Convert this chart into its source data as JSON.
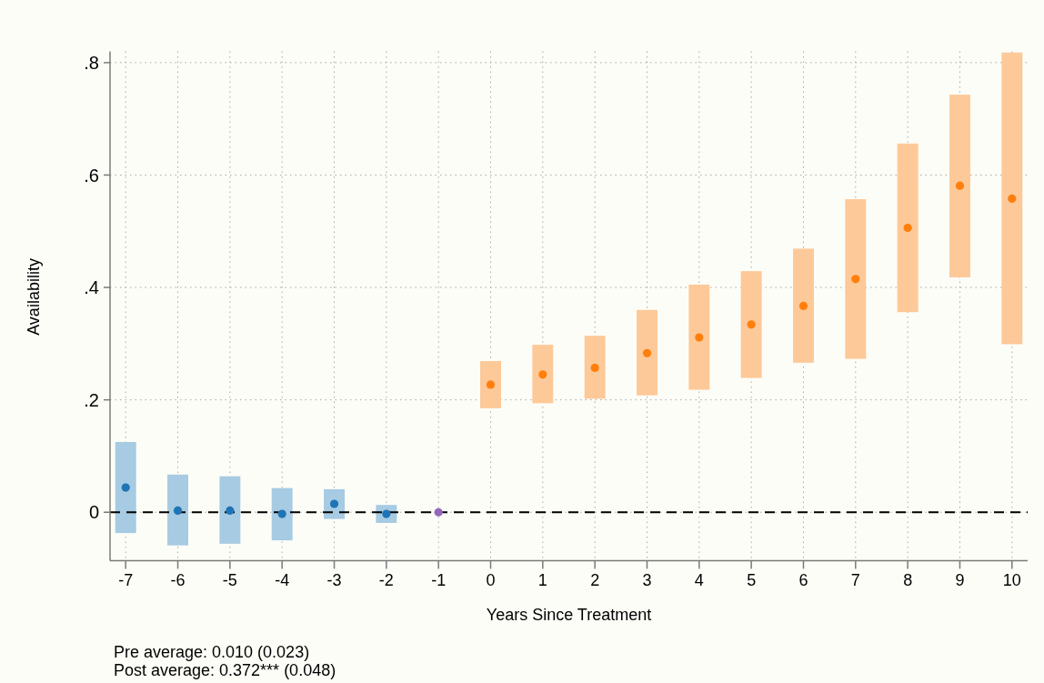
{
  "chart_data": {
    "type": "bar",
    "xlabel": "Years Since Treatment",
    "ylabel": "Availability",
    "categories": [
      "-7",
      "-6",
      "-5",
      "-4",
      "-3",
      "-2",
      "-1",
      "0",
      "1",
      "2",
      "3",
      "4",
      "5",
      "6",
      "7",
      "8",
      "9",
      "10"
    ],
    "series": [
      {
        "colors": [
          "#a6cbe3",
          "#a6cbe3",
          "#a6cbe3",
          "#a6cbe3",
          "#a6cbe3",
          "#a6cbe3",
          null,
          "#fdc998",
          "#fdc998",
          "#fdc998",
          "#fdc998",
          "#fdc998",
          "#fdc998",
          "#fdc998",
          "#fdc998",
          "#fdc998",
          "#fdc998",
          "#fdc998"
        ],
        "base": [
          -0.037,
          -0.059,
          -0.056,
          -0.05,
          -0.012,
          -0.019,
          null,
          0.185,
          0.194,
          0.202,
          0.208,
          0.218,
          0.239,
          0.266,
          0.273,
          0.356,
          0.418,
          0.299
        ],
        "values": [
          0.162,
          0.126,
          0.12,
          0.093,
          0.053,
          0.032,
          null,
          0.084,
          0.104,
          0.112,
          0.152,
          0.187,
          0.19,
          0.203,
          0.284,
          0.3,
          0.325,
          0.519
        ]
      },
      {
        "type": "scatter",
        "x": [
          "-7",
          "-6",
          "-5",
          "-4",
          "-3",
          "-2",
          "-1",
          "0",
          "1",
          "2",
          "3",
          "4",
          "5",
          "6",
          "7",
          "8",
          "9",
          "10"
        ],
        "colors": [
          "#1f74b5",
          "#1f74b5",
          "#1f74b5",
          "#1f74b5",
          "#1f74b5",
          "#1f74b5",
          "#9467bd",
          "#ff7f0e",
          "#ff7f0e",
          "#ff7f0e",
          "#ff7f0e",
          "#ff7f0e",
          "#ff7f0e",
          "#ff7f0e",
          "#ff7f0e",
          "#ff7f0e",
          "#ff7f0e",
          "#ff7f0e"
        ],
        "values": [
          0.044,
          0.003,
          0.003,
          -0.003,
          0.015,
          -0.003,
          0,
          0.227,
          0.245,
          0.257,
          0.283,
          0.311,
          0.334,
          0.367,
          0.415,
          0.506,
          0.581,
          0.558
        ]
      }
    ],
    "ylim": [
      -0.086,
      0.82
    ],
    "yticks": [
      0,
      {
        "value": 0.2,
        "label": ".2"
      },
      {
        "value": 0.4,
        "label": ".4"
      },
      {
        "value": 0.6,
        "label": ".6"
      },
      {
        "value": 0.8,
        "label": ".8"
      }
    ],
    "grid": true,
    "marker": "circle",
    "ref_lines": [
      {
        "axis": "y",
        "value": 0,
        "color": "#000000",
        "line_style": "dashed"
      }
    ],
    "annotations": [
      "Pre average: 0.010 (0.023)",
      "Post average: 0.372*** (0.048)"
    ]
  }
}
